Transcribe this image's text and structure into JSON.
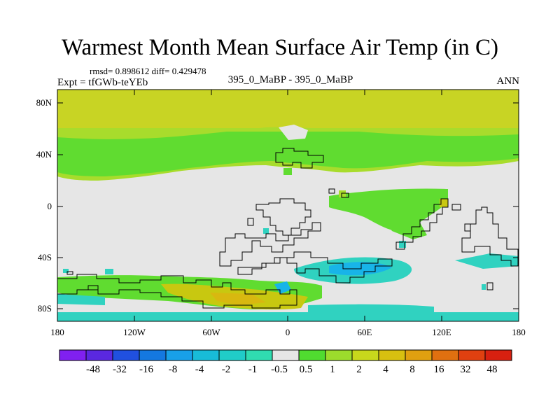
{
  "title": "Warmest Month Mean Surface Air Temp (in C)",
  "stats": "rmsd= 0.898612 diff= 0.429478",
  "experiment": "Expt = tfGWb-teYEb",
  "comparison": "395_0_MaBP - 395_0_MaBP",
  "season": "ANN",
  "map": {
    "lat_labels": [
      "80N",
      "40N",
      "0",
      "40S",
      "80S"
    ],
    "lon_labels": [
      "180",
      "120W",
      "60W",
      "0",
      "60E",
      "120E",
      "180"
    ],
    "colors": {
      "background": "#e6e6e6",
      "green_light": "#60dc30",
      "green_yellow": "#a8dc2c",
      "yellow": "#d0cc10",
      "cyan": "#30d2c0",
      "teal": "#20c8c0",
      "blue_light": "#18b4e8"
    }
  },
  "colorbar": {
    "labels": [
      "-48",
      "-32",
      "-16",
      "-8",
      "-4",
      "-2",
      "-1",
      "-0.5",
      "0.5",
      "1",
      "2",
      "4",
      "8",
      "16",
      "32",
      "48"
    ],
    "colors": [
      "#8020f0",
      "#5a28e0",
      "#2050e0",
      "#1478e0",
      "#18a0e8",
      "#18bcd8",
      "#20ccc8",
      "#30dcb0",
      "#e6e6e6",
      "#50dc30",
      "#9cdc2c",
      "#c8d81c",
      "#d8c010",
      "#e0a010",
      "#e07010",
      "#e04010",
      "#d82010"
    ]
  }
}
